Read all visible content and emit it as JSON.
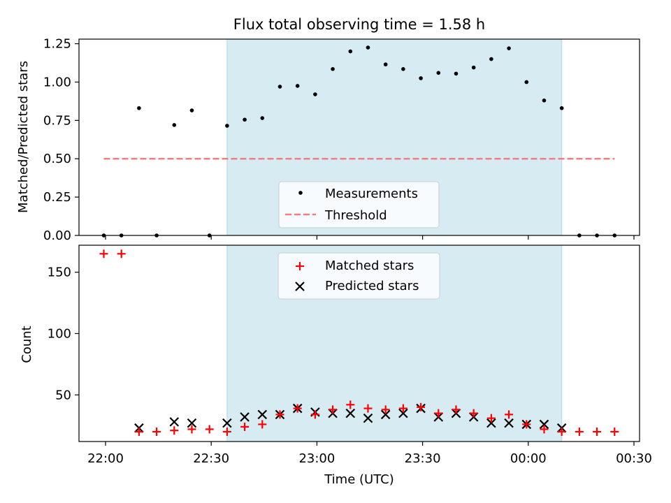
{
  "title": "Flux total observing time = 1.58 h",
  "chart_data": [
    {
      "type": "scatter",
      "ylabel": "Matched/Predicted stars",
      "ylim": [
        0,
        1.28
      ],
      "yticks": [
        0,
        0.25,
        0.5,
        0.75,
        1.0,
        1.25
      ],
      "ytick_labels": [
        "0.00",
        "0.25",
        "0.50",
        "0.75",
        "1.00",
        "1.25"
      ],
      "x": [
        "21:59:30",
        "22:04:30",
        "22:09:30",
        "22:14:30",
        "22:19:30",
        "22:24:30",
        "22:29:30",
        "22:34:30",
        "22:39:30",
        "22:44:30",
        "22:49:30",
        "22:54:30",
        "22:59:30",
        "23:04:30",
        "23:09:30",
        "23:14:30",
        "23:19:30",
        "23:24:30",
        "23:29:30",
        "23:34:30",
        "23:39:30",
        "23:44:30",
        "23:49:30",
        "23:54:30",
        "23:59:30",
        "00:04:30",
        "00:09:30",
        "00:14:30",
        "00:19:30",
        "00:24:30"
      ],
      "series": [
        {
          "name": "Measurements",
          "marker": "dot",
          "color": "#000000",
          "values": [
            0,
            0,
            0.83,
            0,
            0.72,
            0.815,
            0,
            0.715,
            0.755,
            0.765,
            0.97,
            0.975,
            0.92,
            1.085,
            1.2,
            1.225,
            1.115,
            1.085,
            1.025,
            1.06,
            1.055,
            1.095,
            1.15,
            1.22,
            1.0,
            0.88,
            0.83,
            0,
            0,
            0
          ]
        },
        {
          "name": "Threshold",
          "style": "dashed",
          "color": "#f08080",
          "x_range": [
            "21:59:30",
            "00:24:30"
          ],
          "value": 0.5
        }
      ],
      "legend": "lower-center"
    },
    {
      "type": "scatter",
      "ylabel": "Count",
      "xlabel": "Time (UTC)",
      "ylim": [
        12,
        172
      ],
      "yticks": [
        50,
        100,
        150
      ],
      "ytick_labels": [
        "50",
        "100",
        "150"
      ],
      "xtick_labels": [
        "22:00",
        "22:30",
        "23:00",
        "23:30",
        "00:00",
        "00:30"
      ],
      "x": [
        "21:59:30",
        "22:04:30",
        "22:09:30",
        "22:14:30",
        "22:19:30",
        "22:24:30",
        "22:29:30",
        "22:34:30",
        "22:39:30",
        "22:44:30",
        "22:49:30",
        "22:54:30",
        "22:59:30",
        "23:04:30",
        "23:09:30",
        "23:14:30",
        "23:19:30",
        "23:24:30",
        "23:29:30",
        "23:34:30",
        "23:39:30",
        "23:44:30",
        "23:49:30",
        "23:54:30",
        "23:59:30",
        "00:04:30",
        "00:09:30",
        "00:14:30",
        "00:19:30",
        "00:24:30"
      ],
      "series": [
        {
          "name": "Matched stars",
          "marker": "plus",
          "color": "#ff0000",
          "values": [
            165,
            165,
            20,
            20,
            21,
            22,
            22,
            20,
            24,
            26,
            34,
            39,
            34,
            38,
            42,
            39,
            38,
            39,
            40,
            35,
            38,
            35,
            31,
            34,
            26,
            22,
            20,
            20,
            20,
            20
          ]
        },
        {
          "name": "Predicted stars",
          "marker": "x",
          "color": "#000000",
          "values": [
            null,
            null,
            23,
            null,
            28,
            27,
            null,
            27,
            32,
            34,
            34,
            39,
            36,
            35,
            35,
            31,
            34,
            35,
            39,
            32,
            35,
            32,
            27,
            27,
            26,
            26,
            23,
            null,
            null,
            null
          ]
        }
      ],
      "legend": "upper-center"
    }
  ],
  "observing_window": {
    "start": "22:34:30",
    "end": "00:09:30",
    "color": "#add8e6"
  }
}
